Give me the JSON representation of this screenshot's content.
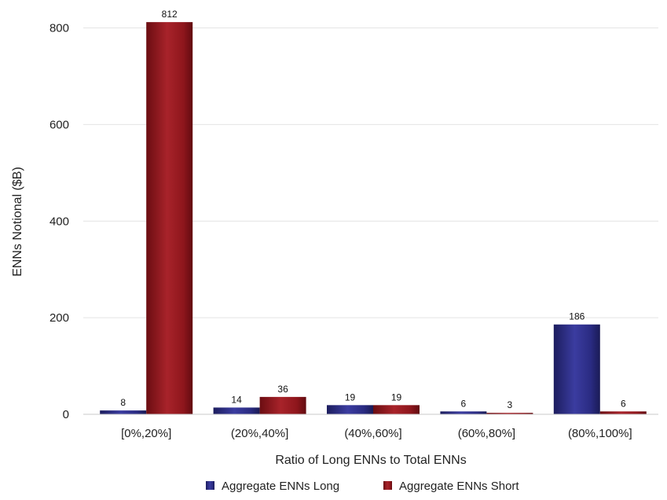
{
  "chart_data": {
    "type": "bar",
    "title": "",
    "xlabel": "Ratio of Long ENNs to Total ENNs",
    "ylabel": "ENNs Notional ($B)",
    "ylim": [
      0,
      850
    ],
    "yticks": [
      0,
      200,
      400,
      600,
      800
    ],
    "grid": true,
    "legend_position": "bottom",
    "categories": [
      "[0%,20%]",
      "(20%,40%]",
      "(40%,60%]",
      "(60%,80%]",
      "(80%,100%]"
    ],
    "series": [
      {
        "name": "Aggregate ENNs Long",
        "color": "#26277a",
        "values": [
          8,
          14,
          19,
          6,
          186
        ],
        "labels": [
          "8",
          "14",
          "19",
          "6",
          "186"
        ]
      },
      {
        "name": "Aggregate ENNs Short",
        "color": "#8a1218",
        "values": [
          812,
          36,
          19,
          3,
          6
        ],
        "labels": [
          "812",
          "36",
          "19",
          "3",
          "6"
        ]
      }
    ]
  }
}
